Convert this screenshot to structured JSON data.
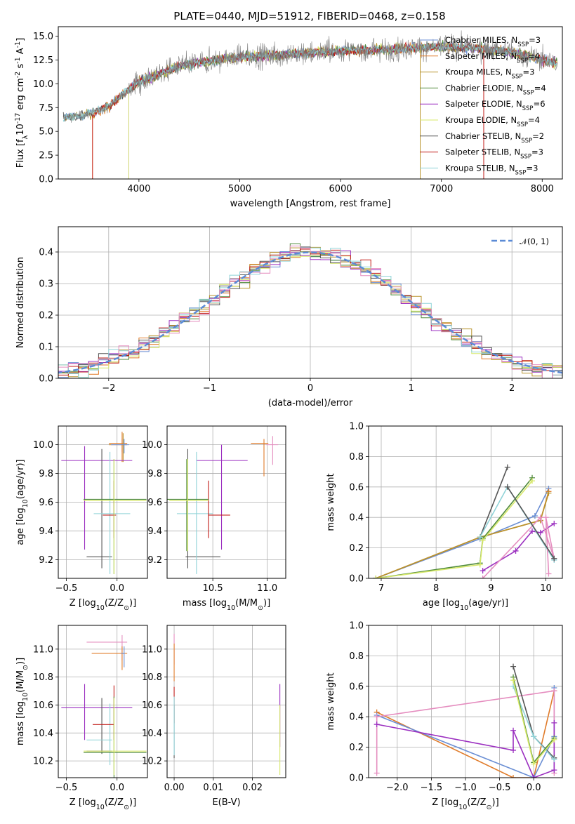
{
  "colors": {
    "chabrier_miles": "#6b8fd4",
    "salpeter_miles": "#e07b2a",
    "kroupa_miles": "#b8932c",
    "chabrier_elodie": "#4f8a3a",
    "salpeter_elodie": "#9b2fc0",
    "kroupa_elodie": "#d7e86a",
    "chabrier_stelib": "#555555",
    "salpeter_stelib": "#c11b17",
    "kroupa_stelib": "#8fd3d8",
    "pink": "#e58dbf",
    "data": "#808080",
    "normal_curve": "#5b8bd6"
  },
  "chart_data": [
    {
      "id": "spectrum",
      "type": "line",
      "title": "PLATE=0440, MJD=51912, FIBERID=0468, z=0.158",
      "xlabel": "wavelength [Angstrom, rest frame]",
      "ylabel": "Flux [f$_λ$10$^{-17}$ erg cm$^{-2}$ s$^{-1}$ A$^{-1}$]",
      "xlim": [
        3200,
        8200
      ],
      "ylim": [
        0,
        16
      ],
      "xticks": [
        "4000",
        "5000",
        "6000",
        "7000",
        "8000"
      ],
      "yticks": [
        "0.0",
        "2.5",
        "5.0",
        "7.5",
        "10.0",
        "12.5",
        "15.0"
      ],
      "grid": false,
      "legend_position": "top-right",
      "series": [
        {
          "key": "chabrier_miles",
          "name": "Chabrier MILES, N",
          "sub": "SSP",
          "suffix": "=3"
        },
        {
          "key": "salpeter_miles",
          "name": "Salpeter MILES, N",
          "sub": "SSP",
          "suffix": "=4"
        },
        {
          "key": "kroupa_miles",
          "name": "Kroupa MILES, N",
          "sub": "SSP",
          "suffix": "=3"
        },
        {
          "key": "chabrier_elodie",
          "name": "Chabrier ELODIE, N",
          "sub": "SSP",
          "suffix": "=4"
        },
        {
          "key": "salpeter_elodie",
          "name": "Salpeter ELODIE, N",
          "sub": "SSP",
          "suffix": "=6"
        },
        {
          "key": "kroupa_elodie",
          "name": "Kroupa ELODIE, N",
          "sub": "SSP",
          "suffix": "=4"
        },
        {
          "key": "chabrier_stelib",
          "name": "Chabrier STELIB, N",
          "sub": "SSP",
          "suffix": "=2"
        },
        {
          "key": "salpeter_stelib",
          "name": "Salpeter STELIB, N",
          "sub": "SSP",
          "suffix": "=3"
        },
        {
          "key": "kroupa_stelib",
          "name": "Kroupa STELIB, N",
          "sub": "SSP",
          "suffix": "=3"
        }
      ],
      "continuum": {
        "x": [
          3250,
          3400,
          3550,
          3700,
          3850,
          4000,
          4200,
          4400,
          4700,
          5000,
          5300,
          5600,
          5900,
          6200,
          6500,
          6800,
          7100,
          7400,
          7700,
          8000,
          8150
        ],
        "y": [
          6.5,
          6.6,
          7.0,
          7.6,
          9.0,
          10.2,
          11.0,
          11.8,
          12.4,
          12.8,
          13.0,
          13.2,
          13.4,
          13.5,
          13.6,
          13.8,
          13.9,
          13.7,
          13.3,
          12.5,
          12.1
        ]
      }
    },
    {
      "id": "residuals",
      "type": "histogram",
      "xlabel": "(data-model)/error",
      "ylabel": "Normed distribution",
      "xlim": [
        -2.5,
        2.5
      ],
      "ylim": [
        0,
        0.48
      ],
      "xticks": [
        "−2",
        "−1",
        "0",
        "1",
        "2"
      ],
      "yticks": [
        "0.0",
        "0.1",
        "0.2",
        "0.3",
        "0.4"
      ],
      "grid": true,
      "legend_position": "top-right",
      "legend_label": "𝒩(0, 1)",
      "normal_curve": {
        "mean": 0,
        "sigma": 1
      },
      "bin_width": 0.1
    },
    {
      "id": "z-age",
      "type": "errorbar",
      "xlabel": "Z [log$_{10}$(Z/Z$_⊙$)]",
      "ylabel": "age  [log$_{10}$(age/yr)]",
      "xlim": [
        -0.58,
        0.3
      ],
      "ylim": [
        9.07,
        10.13
      ],
      "xticks": [
        "−0.5",
        "0.0"
      ],
      "yticks": [
        "9.2",
        "9.4",
        "9.6",
        "9.8",
        "10.0"
      ],
      "grid": true,
      "points": [
        {
          "key": "pink",
          "x": 0.05,
          "xerr": [
            0.13,
            0.05
          ],
          "y": 10.0,
          "yerr": [
            0.05,
            0.04
          ]
        },
        {
          "key": "salpeter_miles",
          "x": 0.05,
          "xerr": [
            0.13,
            0.05
          ],
          "y": 10.01,
          "yerr": [
            0.13,
            0.08
          ]
        },
        {
          "key": "kroupa_miles",
          "x": 0.06,
          "xerr": [
            0.14,
            0.04
          ],
          "y": 10.0,
          "yerr": [
            0.12,
            0.08
          ]
        },
        {
          "key": "chabrier_miles",
          "x": 0.07,
          "xerr": [
            0.13,
            0.05
          ],
          "y": 10.0,
          "yerr": [
            0.06,
            0.04
          ]
        },
        {
          "key": "salpeter_elodie",
          "x": -0.32,
          "xerr": [
            0.23,
            0.47
          ],
          "y": 9.89,
          "yerr": [
            0.62,
            0.1
          ]
        },
        {
          "key": "chabrier_stelib",
          "x": -0.15,
          "xerr": [
            0.15,
            0.1
          ],
          "y": 9.22,
          "yerr": [
            0.08,
            0.75
          ]
        },
        {
          "key": "kroupa_stelib",
          "x": -0.07,
          "xerr": [
            0.16,
            0.2
          ],
          "y": 9.52,
          "yerr": [
            0.42,
            0.43
          ]
        },
        {
          "key": "salpeter_stelib",
          "x": -0.03,
          "xerr": [
            0.11,
            0.02
          ],
          "y": 9.51,
          "yerr": [
            0.16,
            0.24
          ]
        },
        {
          "key": "chabrier_elodie",
          "x": -0.03,
          "xerr": [
            0.3,
            0.32
          ],
          "y": 9.62,
          "yerr": [
            0.52,
            0.28
          ]
        },
        {
          "key": "kroupa_elodie",
          "x": -0.03,
          "xerr": [
            0.3,
            0.32
          ],
          "y": 9.61,
          "yerr": [
            0.51,
            0.29
          ]
        }
      ]
    },
    {
      "id": "mass-age",
      "type": "errorbar",
      "xlabel": "mass [log$_{10}$(M/M$_⊙$)]",
      "ylabel": "",
      "xlim": [
        10.08,
        11.17
      ],
      "ylim": [
        9.07,
        10.13
      ],
      "xticks": [
        "10.5",
        "11.0"
      ],
      "yticks": [
        "9.2",
        "9.4",
        "9.6",
        "9.8",
        "10.0"
      ],
      "grid": true,
      "points": [
        {
          "key": "pink",
          "x": 11.05,
          "xerr": [
            0.06,
            0.05
          ],
          "y": 10.0,
          "yerr": [
            0.14,
            0.06
          ]
        },
        {
          "key": "salpeter_miles",
          "x": 10.97,
          "xerr": [
            0.12,
            0.04
          ],
          "y": 10.01,
          "yerr": [
            0.23,
            0.03
          ]
        },
        {
          "key": "salpeter_elodie",
          "x": 10.58,
          "xerr": [
            0.23,
            0.24
          ],
          "y": 9.89,
          "yerr": [
            0.62,
            0.11
          ]
        },
        {
          "key": "chabrier_stelib",
          "x": 10.27,
          "xerr": [
            0.02,
            0.3
          ],
          "y": 9.22,
          "yerr": [
            0.08,
            0.75
          ]
        },
        {
          "key": "kroupa_stelib",
          "x": 10.35,
          "xerr": [
            0.18,
            0.15
          ],
          "y": 9.52,
          "yerr": [
            0.42,
            0.43
          ]
        },
        {
          "key": "salpeter_stelib",
          "x": 10.46,
          "xerr": [
            0.0,
            0.2
          ],
          "y": 9.51,
          "yerr": [
            0.16,
            0.24
          ]
        },
        {
          "key": "chabrier_elodie",
          "x": 10.26,
          "xerr": [
            0.18,
            0.2
          ],
          "y": 9.62,
          "yerr": [
            0.36,
            0.28
          ]
        },
        {
          "key": "kroupa_elodie",
          "x": 10.27,
          "xerr": [
            0.17,
            0.19
          ],
          "y": 9.61,
          "yerr": [
            0.35,
            0.29
          ]
        }
      ]
    },
    {
      "id": "age-weight",
      "type": "line",
      "xlabel": "age  [log$_{10}$(age/yr)]",
      "ylabel": "mass weight",
      "xlim": [
        6.77,
        10.3
      ],
      "ylim": [
        0,
        1
      ],
      "xticks": [
        "7",
        "8",
        "9",
        "10"
      ],
      "yticks": [
        "0.0",
        "0.2",
        "0.4",
        "0.6",
        "0.8",
        "1.0"
      ],
      "grid": true,
      "series": [
        {
          "key": "chabrier_stelib",
          "x": [
            8.8,
            9.3
          ],
          "y": [
            0.27,
            0.73
          ]
        },
        {
          "key": "chabrier_miles",
          "x": [
            6.9,
            8.8,
            9.8,
            10.05
          ],
          "y": [
            0.0,
            0.26,
            0.41,
            0.59
          ]
        },
        {
          "key": "salpeter_miles",
          "x": [
            6.9,
            8.8,
            9.9,
            10.05
          ],
          "y": [
            0.0,
            0.27,
            0.38,
            0.57
          ]
        },
        {
          "key": "kroupa_miles",
          "x": [
            6.9,
            8.8,
            9.9,
            10.05
          ],
          "y": [
            0.0,
            0.27,
            0.38,
            0.56
          ]
        },
        {
          "key": "chabrier_elodie",
          "x": [
            6.9,
            8.8,
            8.85,
            9.75
          ],
          "y": [
            0.0,
            0.1,
            0.26,
            0.66
          ]
        },
        {
          "key": "kroupa_elodie",
          "x": [
            6.9,
            8.8,
            8.85,
            9.75
          ],
          "y": [
            0.0,
            0.09,
            0.25,
            0.64
          ]
        },
        {
          "key": "salpeter_elodie",
          "x": [
            8.85,
            9.45,
            9.75,
            9.9,
            10.15
          ],
          "y": [
            0.05,
            0.18,
            0.31,
            0.3,
            0.36
          ]
        },
        {
          "key": "kroupa_stelib",
          "x": [
            8.8,
            9.3,
            10.15
          ],
          "y": [
            0.27,
            0.6,
            0.12
          ]
        },
        {
          "key": "pink",
          "x": [
            8.85,
            9.9,
            10.15,
            10.0,
            10.05
          ],
          "y": [
            0.0,
            0.4,
            0.13,
            0.4,
            0.03
          ]
        },
        {
          "key": "chabrier_stelib",
          "x": [
            9.3,
            10.15
          ],
          "y": [
            0.6,
            0.13
          ]
        }
      ]
    },
    {
      "id": "z-mass",
      "type": "errorbar",
      "xlabel": "Z [log$_{10}$(Z/Z$_⊙$)]",
      "ylabel": "mass [log$_{10}$(M/M$_⊙$)]",
      "xlim": [
        -0.58,
        0.3
      ],
      "ylim": [
        10.08,
        11.17
      ],
      "xticks": [
        "−0.5",
        "0.0"
      ],
      "yticks": [
        "10.2",
        "10.4",
        "10.6",
        "10.8",
        "11.0"
      ],
      "grid": true,
      "points": [
        {
          "key": "pink",
          "x": 0.05,
          "xerr": [
            0.35,
            0.05
          ],
          "y": 11.05,
          "yerr": [
            0.13,
            0.05
          ]
        },
        {
          "key": "salpeter_miles",
          "x": 0.05,
          "xerr": [
            0.3,
            0.05
          ],
          "y": 10.97,
          "yerr": [
            0.12,
            0.05
          ]
        },
        {
          "key": "chabrier_miles",
          "x": 0.07,
          "xerr": [
            0.03,
            0.0
          ],
          "y": 10.97,
          "yerr": [
            0.1,
            0.05
          ]
        },
        {
          "key": "salpeter_elodie",
          "x": -0.32,
          "xerr": [
            0.23,
            0.47
          ],
          "y": 10.58,
          "yerr": [
            0.23,
            0.17
          ]
        },
        {
          "key": "chabrier_stelib",
          "x": -0.15,
          "xerr": [
            0.15,
            0.1
          ],
          "y": 10.27,
          "yerr": [
            0.02,
            0.38
          ]
        },
        {
          "key": "kroupa_stelib",
          "x": -0.07,
          "xerr": [
            0.23,
            0.02
          ],
          "y": 10.35,
          "yerr": [
            0.18,
            0.26
          ]
        },
        {
          "key": "salpeter_stelib",
          "x": -0.03,
          "xerr": [
            0.21,
            0.0
          ],
          "y": 10.46,
          "yerr": [
            0.11,
            0.28
          ]
        },
        {
          "key": "chabrier_elodie",
          "x": -0.03,
          "xerr": [
            0.3,
            0.32
          ],
          "y": 10.26,
          "yerr": [
            0.18,
            0.4
          ]
        },
        {
          "key": "kroupa_elodie",
          "x": -0.03,
          "xerr": [
            0.3,
            0.32
          ],
          "y": 10.27,
          "yerr": [
            0.17,
            0.38
          ]
        }
      ]
    },
    {
      "id": "ebv-mass",
      "type": "errorbar",
      "xlabel": "E(B-V)",
      "ylabel": "",
      "xlim": [
        -0.0018,
        0.0285
      ],
      "ylim": [
        10.08,
        11.17
      ],
      "xticks": [
        "0.00",
        "0.01",
        "0.02"
      ],
      "yticks": [
        "10.2",
        "10.4",
        "10.6",
        "10.8",
        "11.0"
      ],
      "grid": true,
      "points": [
        {
          "key": "pink",
          "x": 0.0,
          "xerr": [
            0,
            0
          ],
          "y": 11.0,
          "yerr": [
            0.11,
            0.11
          ]
        },
        {
          "key": "salpeter_miles",
          "x": 0.0,
          "xerr": [
            0,
            0
          ],
          "y": 10.97,
          "yerr": [
            0.2,
            0.07
          ]
        },
        {
          "key": "salpeter_stelib",
          "x": 0.0,
          "xerr": [
            0,
            0
          ],
          "y": 10.57,
          "yerr": [
            0.1,
            0.16
          ]
        },
        {
          "key": "chabrier_stelib",
          "x": 0.0,
          "xerr": [
            0,
            0
          ],
          "y": 10.42,
          "yerr": [
            0.2,
            0.18
          ]
        },
        {
          "key": "kroupa_stelib",
          "x": 0.0,
          "xerr": [
            0,
            0
          ],
          "y": 10.4,
          "yerr": [
            0.16,
            0.26
          ]
        },
        {
          "key": "salpeter_elodie",
          "x": 0.027,
          "xerr": [
            0,
            0
          ],
          "y": 10.6,
          "yerr": [
            0.3,
            0.15
          ]
        },
        {
          "key": "kroupa_elodie",
          "x": 0.027,
          "xerr": [
            0,
            0
          ],
          "y": 10.35,
          "yerr": [
            0.25,
            0.25
          ]
        }
      ]
    },
    {
      "id": "z-weight",
      "type": "line",
      "xlabel": "Z [log$_{10}$(Z/Z$_⊙$)]",
      "ylabel": "mass weight",
      "xlim": [
        -2.42,
        0.42
      ],
      "ylim": [
        0,
        1
      ],
      "xticks": [
        "−2.0",
        "−1.5",
        "−1.0",
        "−0.5",
        "0.0"
      ],
      "yticks": [
        "0.0",
        "0.2",
        "0.4",
        "0.6",
        "0.8",
        "1.0"
      ],
      "grid": true,
      "series": [
        {
          "key": "salpeter_miles",
          "x": [
            -2.3,
            -0.3,
            0.0,
            0.3
          ],
          "y": [
            0.43,
            0.0,
            0.0,
            0.57
          ]
        },
        {
          "key": "chabrier_miles",
          "x": [
            -2.3,
            0.0,
            0.3,
            0.3
          ],
          "y": [
            0.41,
            0.0,
            0.27,
            0.59
          ]
        },
        {
          "key": "pink",
          "x": [
            -2.3,
            -2.3,
            0.3,
            0.3
          ],
          "y": [
            0.03,
            0.4,
            0.57,
            0.03
          ]
        },
        {
          "key": "salpeter_elodie",
          "x": [
            -2.3,
            -0.3,
            -0.3,
            0.0,
            0.3,
            0.3
          ],
          "y": [
            0.35,
            0.18,
            0.31,
            0.0,
            0.05,
            0.36
          ]
        },
        {
          "key": "chabrier_stelib",
          "x": [
            -0.3,
            0.0,
            0.3
          ],
          "y": [
            0.73,
            0.27,
            0.13
          ]
        },
        {
          "key": "kroupa_stelib",
          "x": [
            -0.3,
            0.0,
            0.3
          ],
          "y": [
            0.6,
            0.27,
            0.12
          ]
        },
        {
          "key": "chabrier_elodie",
          "x": [
            -0.3,
            0.0,
            0.3
          ],
          "y": [
            0.66,
            0.1,
            0.26
          ]
        },
        {
          "key": "kroupa_elodie",
          "x": [
            -0.3,
            0.0,
            0.3
          ],
          "y": [
            0.64,
            0.09,
            0.25
          ]
        }
      ]
    }
  ]
}
